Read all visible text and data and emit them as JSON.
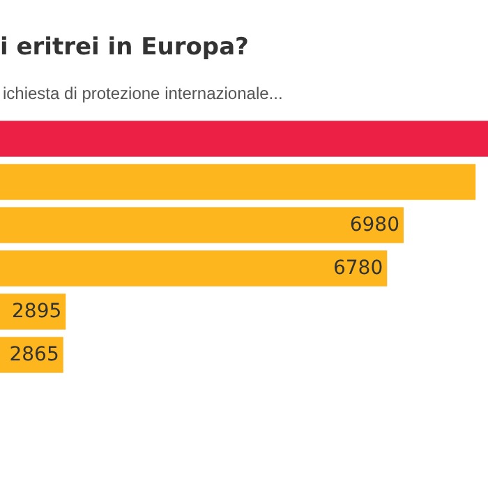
{
  "chart_data": {
    "type": "bar",
    "orientation": "horizontal",
    "title": "i eritrei in Europa?",
    "subtitle": "ichiesta di protezione internazionale...",
    "categories": [
      null,
      null,
      null,
      null,
      null,
      null
    ],
    "values": [
      8000,
      7850,
      6980,
      6780,
      2895,
      2865
    ],
    "value_labels": [
      null,
      null,
      "6980",
      "6780",
      "2895",
      "2865"
    ],
    "colors": [
      "#ec1f45",
      "#fdb61d",
      "#fdb61d",
      "#fdb61d",
      "#fdb61d",
      "#fdb61d"
    ],
    "xlim": [
      2100,
      8000
    ]
  }
}
